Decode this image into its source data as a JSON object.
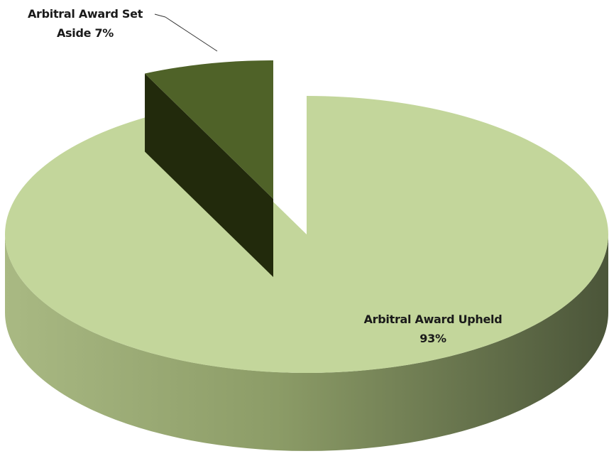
{
  "chart_data": {
    "type": "pie",
    "categories": [
      "Arbitral Award Upheld",
      "Arbitral Award Set Aside"
    ],
    "values": [
      93,
      7
    ],
    "value_labels": [
      "93%",
      "7%"
    ],
    "colors": [
      "#c3d69b",
      "#4f6228"
    ],
    "exploded": [
      false,
      true
    ]
  }
}
